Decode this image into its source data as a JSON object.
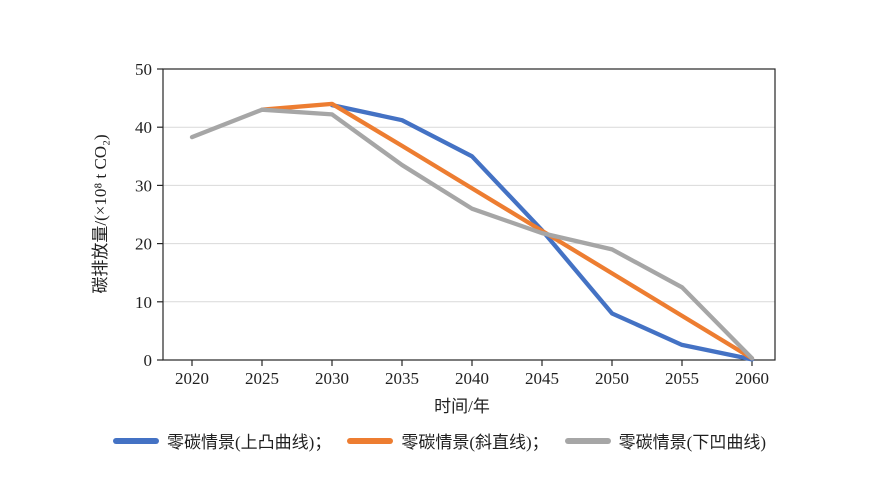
{
  "chart_data": {
    "type": "line",
    "title": "",
    "xlabel": "时间/年",
    "ylabel": "碳排放量/(×10⁸ t CO₂)",
    "x": [
      2020,
      2025,
      2030,
      2035,
      2040,
      2045,
      2050,
      2055,
      2060
    ],
    "xlim": [
      2020,
      2060
    ],
    "ylim": [
      0,
      50
    ],
    "yticks": [
      0,
      10,
      20,
      30,
      40,
      50
    ],
    "grid": "horizontal",
    "legend_position": "bottom",
    "series": [
      {
        "id": "convex",
        "name": "零碳情景(上凸曲线)",
        "legend_label": "零碳情景(上凸曲线)；",
        "color": "#4472C4",
        "values": [
          null,
          null,
          43.8,
          41.2,
          35.0,
          22.3,
          8.0,
          2.6,
          0.1
        ]
      },
      {
        "id": "straight",
        "name": "零碳情景(斜直线)",
        "legend_label": "零碳情景(斜直线)；",
        "color": "#ED7D31",
        "values": [
          null,
          43.0,
          44.0,
          36.8,
          29.5,
          22.2,
          14.9,
          7.6,
          0.3
        ]
      },
      {
        "id": "concave",
        "name": "零碳情景(下凹曲线)",
        "legend_label": "零碳情景(下凹曲线)",
        "color": "#A6A6A6",
        "values": [
          38.3,
          43.0,
          42.2,
          33.5,
          26.0,
          21.8,
          19.0,
          12.5,
          0.3
        ]
      }
    ]
  },
  "style_colors": {
    "axis": "#262626",
    "grid": "#D9D9D9",
    "tick": "#404040",
    "background": "#FFFFFF"
  }
}
